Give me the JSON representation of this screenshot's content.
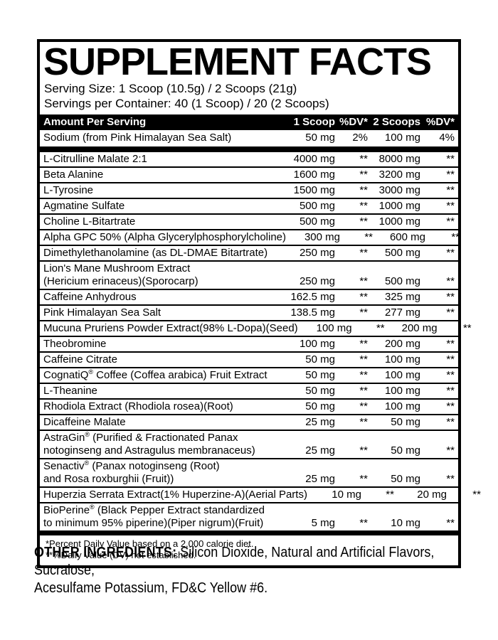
{
  "colors": {
    "ink": "#000000",
    "background": "#ffffff"
  },
  "label": {
    "title": "SUPPLEMENT FACTS",
    "serving_size": "Serving Size: 1 Scoop (10.5g) / 2 Scoops (21g)",
    "servings_per_container": "Servings per Container: 40 (1 Scoop) / 20 (2 Scoops)",
    "header": {
      "amount_per_serving": "Amount Per Serving",
      "col_1scoop": "1 Scoop",
      "col_dv1": "%DV*",
      "col_2scoops": "2 Scoops",
      "col_dv2": "%DV*"
    },
    "sodium_row": {
      "name": "Sodium (from Pink Himalayan Sea Salt)",
      "amount_1": "50 mg",
      "dv_1": "2%",
      "amount_2": "100 mg",
      "dv_2": "4%"
    },
    "rows": [
      {
        "name": "L-Citrulline Malate 2:1",
        "amount_1": "4000 mg",
        "dv_1": "**",
        "amount_2": "8000 mg",
        "dv_2": "**"
      },
      {
        "name": "Beta Alanine",
        "amount_1": "1600 mg",
        "dv_1": "**",
        "amount_2": "3200 mg",
        "dv_2": "**"
      },
      {
        "name": "L-Tyrosine",
        "amount_1": "1500 mg",
        "dv_1": "**",
        "amount_2": "3000 mg",
        "dv_2": "**"
      },
      {
        "name": "Agmatine Sulfate",
        "amount_1": "500 mg",
        "dv_1": "**",
        "amount_2": "1000 mg",
        "dv_2": "**"
      },
      {
        "name": "Choline L-Bitartrate",
        "amount_1": "500 mg",
        "dv_1": "**",
        "amount_2": "1000 mg",
        "dv_2": "**"
      },
      {
        "name": "Alpha GPC 50% (Alpha Glycerylphosphorylcholine)",
        "amount_1": "300 mg",
        "dv_1": "**",
        "amount_2": "600 mg",
        "dv_2": "**"
      },
      {
        "name": "Dimethylethanolamine (as DL-DMAE Bitartrate)",
        "amount_1": "250 mg",
        "dv_1": "**",
        "amount_2": "500 mg",
        "dv_2": "**"
      },
      {
        "name": "Lion's Mane Mushroom Extract\n(Hericium erinaceus)(Sporocarp)",
        "amount_1": "250 mg",
        "dv_1": "**",
        "amount_2": "500 mg",
        "dv_2": "**"
      },
      {
        "name": "Caffeine Anhydrous",
        "amount_1": "162.5 mg",
        "dv_1": "**",
        "amount_2": "325 mg",
        "dv_2": "**"
      },
      {
        "name": "Pink Himalayan Sea Salt",
        "amount_1": "138.5 mg",
        "dv_1": "**",
        "amount_2": "277 mg",
        "dv_2": "**"
      },
      {
        "name": "Mucuna Pruriens Powder Extract(98% L-Dopa)(Seed)",
        "amount_1": "100 mg",
        "dv_1": "**",
        "amount_2": "200 mg",
        "dv_2": "**"
      },
      {
        "name": "Theobromine",
        "amount_1": "100 mg",
        "dv_1": "**",
        "amount_2": "200 mg",
        "dv_2": "**"
      },
      {
        "name": "Caffeine Citrate",
        "amount_1": "50 mg",
        "dv_1": "**",
        "amount_2": "100 mg",
        "dv_2": "**"
      },
      {
        "name": "CognatiQ® Coffee (Coffea arabica) Fruit Extract",
        "amount_1": "50 mg",
        "dv_1": "**",
        "amount_2": "100 mg",
        "dv_2": "**"
      },
      {
        "name": "L-Theanine",
        "amount_1": "50 mg",
        "dv_1": "**",
        "amount_2": "100 mg",
        "dv_2": "**"
      },
      {
        "name": "Rhodiola Extract (Rhodiola rosea)(Root)",
        "amount_1": "50 mg",
        "dv_1": "**",
        "amount_2": "100 mg",
        "dv_2": "**"
      },
      {
        "name": "Dicaffeine Malate",
        "amount_1": "25 mg",
        "dv_1": "**",
        "amount_2": "50 mg",
        "dv_2": "**"
      },
      {
        "name": "AstraGin® (Purified & Fractionated Panax\nnotoginseng and Astragulus membranaceus)",
        "amount_1": "25 mg",
        "dv_1": "**",
        "amount_2": "50 mg",
        "dv_2": "**"
      },
      {
        "name": "Senactiv® (Panax notoginseng (Root)\nand Rosa roxburghii (Fruit))",
        "amount_1": "25 mg",
        "dv_1": "**",
        "amount_2": "50 mg",
        "dv_2": "**"
      },
      {
        "name": "Huperzia Serrata Extract(1% Huperzine-A)(Aerial Parts)",
        "amount_1": "10 mg",
        "dv_1": "**",
        "amount_2": "20 mg",
        "dv_2": "**"
      },
      {
        "name": "BioPerine® (Black Pepper Extract standardized\nto minimum 95% piperine)(Piper nigrum)(Fruit)",
        "amount_1": "5 mg",
        "dv_1": "**",
        "amount_2": "10 mg",
        "dv_2": "**"
      }
    ],
    "footnotes": {
      "line1": "*Percent Daily Value based on a 2,000 calorie diet.",
      "line2": "**%Daily Value (DV) not established."
    }
  },
  "other_ingredients": {
    "label": "OTHER INGREDIENTS:",
    "text": " Silicon Dioxide, Natural and Artificial Flavors, Sucralose,\nAcesulfame Potassium, FD&C Yellow #6."
  }
}
